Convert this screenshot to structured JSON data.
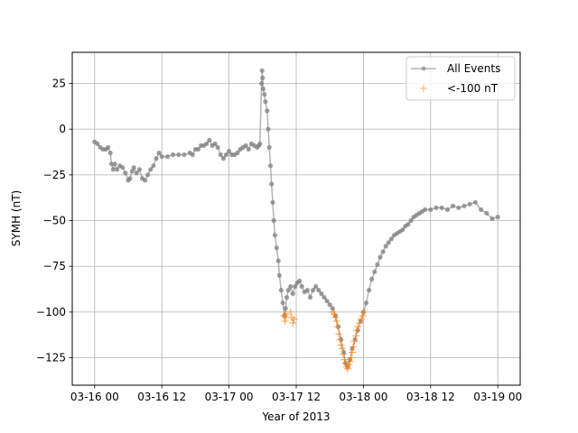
{
  "chart_data": {
    "type": "scatter",
    "xlabel": "Year of 2013",
    "ylabel": "SYMH (nT)",
    "x_unit": "hours since 03-16 00",
    "xlim": [
      -4,
      76
    ],
    "ylim": [
      -140,
      42
    ],
    "x_ticks": [
      {
        "value": 0,
        "label": "03-16 00"
      },
      {
        "value": 12,
        "label": "03-16 12"
      },
      {
        "value": 24,
        "label": "03-17 00"
      },
      {
        "value": 36,
        "label": "03-17 12"
      },
      {
        "value": 48,
        "label": "03-18 00"
      },
      {
        "value": 60,
        "label": "03-18 12"
      },
      {
        "value": 72,
        "label": "03-19 00"
      }
    ],
    "y_ticks": [
      25,
      0,
      -25,
      -50,
      -75,
      -100,
      -125
    ],
    "grid": true,
    "legend_position": "top-right",
    "series": [
      {
        "name": "All Events",
        "color": "#808080",
        "marker": "circle",
        "points": [
          [
            0.0,
            -7
          ],
          [
            0.5,
            -8
          ],
          [
            1.0,
            -10
          ],
          [
            1.5,
            -11
          ],
          [
            2.0,
            -11
          ],
          [
            2.4,
            -10
          ],
          [
            2.8,
            -13
          ],
          [
            3.0,
            -19
          ],
          [
            3.3,
            -22
          ],
          [
            3.6,
            -19
          ],
          [
            4.0,
            -22
          ],
          [
            4.5,
            -20
          ],
          [
            5.0,
            -21
          ],
          [
            5.5,
            -24
          ],
          [
            6.0,
            -28
          ],
          [
            6.3,
            -27
          ],
          [
            6.7,
            -23
          ],
          [
            7.0,
            -21
          ],
          [
            7.5,
            -24
          ],
          [
            8.0,
            -22
          ],
          [
            8.5,
            -27
          ],
          [
            9.0,
            -28
          ],
          [
            9.5,
            -25
          ],
          [
            10.0,
            -22
          ],
          [
            10.5,
            -20
          ],
          [
            11.0,
            -16
          ],
          [
            11.5,
            -13
          ],
          [
            12.0,
            -15
          ],
          [
            13.0,
            -15
          ],
          [
            14.0,
            -14
          ],
          [
            15.0,
            -14
          ],
          [
            16.0,
            -14
          ],
          [
            17.0,
            -13
          ],
          [
            17.5,
            -14
          ],
          [
            18.0,
            -11
          ],
          [
            18.5,
            -11
          ],
          [
            19.0,
            -9
          ],
          [
            19.5,
            -9
          ],
          [
            20.0,
            -8
          ],
          [
            20.5,
            -6
          ],
          [
            21.0,
            -9
          ],
          [
            21.5,
            -8
          ],
          [
            22.0,
            -10
          ],
          [
            22.5,
            -14
          ],
          [
            23.0,
            -16
          ],
          [
            23.5,
            -14
          ],
          [
            24.0,
            -12
          ],
          [
            24.5,
            -14
          ],
          [
            25.0,
            -14
          ],
          [
            25.5,
            -13
          ],
          [
            26.0,
            -11
          ],
          [
            26.5,
            -10
          ],
          [
            27.0,
            -9
          ],
          [
            27.5,
            -11
          ],
          [
            28.0,
            -8
          ],
          [
            28.5,
            -9
          ],
          [
            29.0,
            -10
          ],
          [
            29.3,
            -9
          ],
          [
            29.5,
            -8
          ],
          [
            29.8,
            25
          ],
          [
            29.9,
            32
          ],
          [
            30.0,
            28
          ],
          [
            30.1,
            22
          ],
          [
            30.3,
            19
          ],
          [
            30.5,
            15
          ],
          [
            30.8,
            10
          ],
          [
            31.0,
            0
          ],
          [
            31.2,
            -10
          ],
          [
            31.4,
            -20
          ],
          [
            31.6,
            -30
          ],
          [
            31.8,
            -40
          ],
          [
            32.0,
            -50
          ],
          [
            32.2,
            -58
          ],
          [
            32.5,
            -65
          ],
          [
            32.8,
            -72
          ],
          [
            33.0,
            -80
          ],
          [
            33.3,
            -88
          ],
          [
            33.6,
            -95
          ],
          [
            33.9,
            -102
          ],
          [
            34.1,
            -98
          ],
          [
            34.3,
            -92
          ],
          [
            34.6,
            -88
          ],
          [
            35.0,
            -86
          ],
          [
            35.4,
            -90
          ],
          [
            35.8,
            -86
          ],
          [
            36.2,
            -84
          ],
          [
            36.6,
            -83
          ],
          [
            37.0,
            -86
          ],
          [
            37.5,
            -89
          ],
          [
            38.0,
            -88
          ],
          [
            38.5,
            -92
          ],
          [
            39.0,
            -88
          ],
          [
            39.5,
            -86
          ],
          [
            40.0,
            -88
          ],
          [
            40.5,
            -90
          ],
          [
            41.0,
            -92
          ],
          [
            41.5,
            -94
          ],
          [
            42.0,
            -96
          ],
          [
            42.5,
            -98
          ],
          [
            43.0,
            -102
          ],
          [
            43.5,
            -108
          ],
          [
            44.0,
            -115
          ],
          [
            44.5,
            -122
          ],
          [
            44.8,
            -128
          ],
          [
            45.2,
            -130
          ],
          [
            45.6,
            -126
          ],
          [
            46.0,
            -120
          ],
          [
            46.5,
            -115
          ],
          [
            47.0,
            -110
          ],
          [
            47.5,
            -105
          ],
          [
            48.0,
            -100
          ],
          [
            48.5,
            -95
          ],
          [
            49.0,
            -88
          ],
          [
            49.5,
            -82
          ],
          [
            50.0,
            -78
          ],
          [
            50.5,
            -74
          ],
          [
            51.0,
            -70
          ],
          [
            51.5,
            -67
          ],
          [
            52.0,
            -64
          ],
          [
            52.5,
            -62
          ],
          [
            53.0,
            -60
          ],
          [
            53.5,
            -58
          ],
          [
            54.0,
            -57
          ],
          [
            54.5,
            -56
          ],
          [
            55.0,
            -55
          ],
          [
            55.5,
            -53
          ],
          [
            56.0,
            -52
          ],
          [
            56.5,
            -50
          ],
          [
            57.0,
            -48
          ],
          [
            57.5,
            -47
          ],
          [
            58.0,
            -46
          ],
          [
            58.5,
            -45
          ],
          [
            59.0,
            -44
          ],
          [
            60.0,
            -44
          ],
          [
            61.0,
            -43
          ],
          [
            62.0,
            -43
          ],
          [
            63.0,
            -44
          ],
          [
            64.0,
            -42
          ],
          [
            65.0,
            -43
          ],
          [
            66.0,
            -42
          ],
          [
            67.0,
            -41
          ],
          [
            68.0,
            -40
          ],
          [
            69.0,
            -44
          ],
          [
            70.0,
            -46
          ],
          [
            71.0,
            -49
          ],
          [
            72.0,
            -48
          ]
        ]
      },
      {
        "name": "<-100 nT",
        "color": "#ff7f0e",
        "marker": "plus",
        "points": [
          [
            33.9,
            -102
          ],
          [
            34.0,
            -105
          ],
          [
            34.1,
            -103
          ],
          [
            34.2,
            -101
          ],
          [
            35.0,
            -100
          ],
          [
            35.2,
            -103
          ],
          [
            35.4,
            -106
          ],
          [
            35.6,
            -104
          ],
          [
            42.4,
            -100
          ],
          [
            42.8,
            -101
          ],
          [
            43.0,
            -103
          ],
          [
            43.2,
            -105
          ],
          [
            43.4,
            -108
          ],
          [
            43.6,
            -112
          ],
          [
            43.8,
            -115
          ],
          [
            44.0,
            -118
          ],
          [
            44.2,
            -120
          ],
          [
            44.4,
            -123
          ],
          [
            44.6,
            -126
          ],
          [
            44.8,
            -128
          ],
          [
            45.0,
            -130
          ],
          [
            45.2,
            -131
          ],
          [
            45.4,
            -129
          ],
          [
            45.6,
            -127
          ],
          [
            45.8,
            -125
          ],
          [
            46.0,
            -122
          ],
          [
            46.2,
            -119
          ],
          [
            46.4,
            -116
          ],
          [
            46.6,
            -113
          ],
          [
            46.8,
            -110
          ],
          [
            47.0,
            -108
          ],
          [
            47.3,
            -106
          ],
          [
            47.6,
            -104
          ],
          [
            47.9,
            -102
          ],
          [
            48.1,
            -100
          ]
        ]
      }
    ]
  }
}
